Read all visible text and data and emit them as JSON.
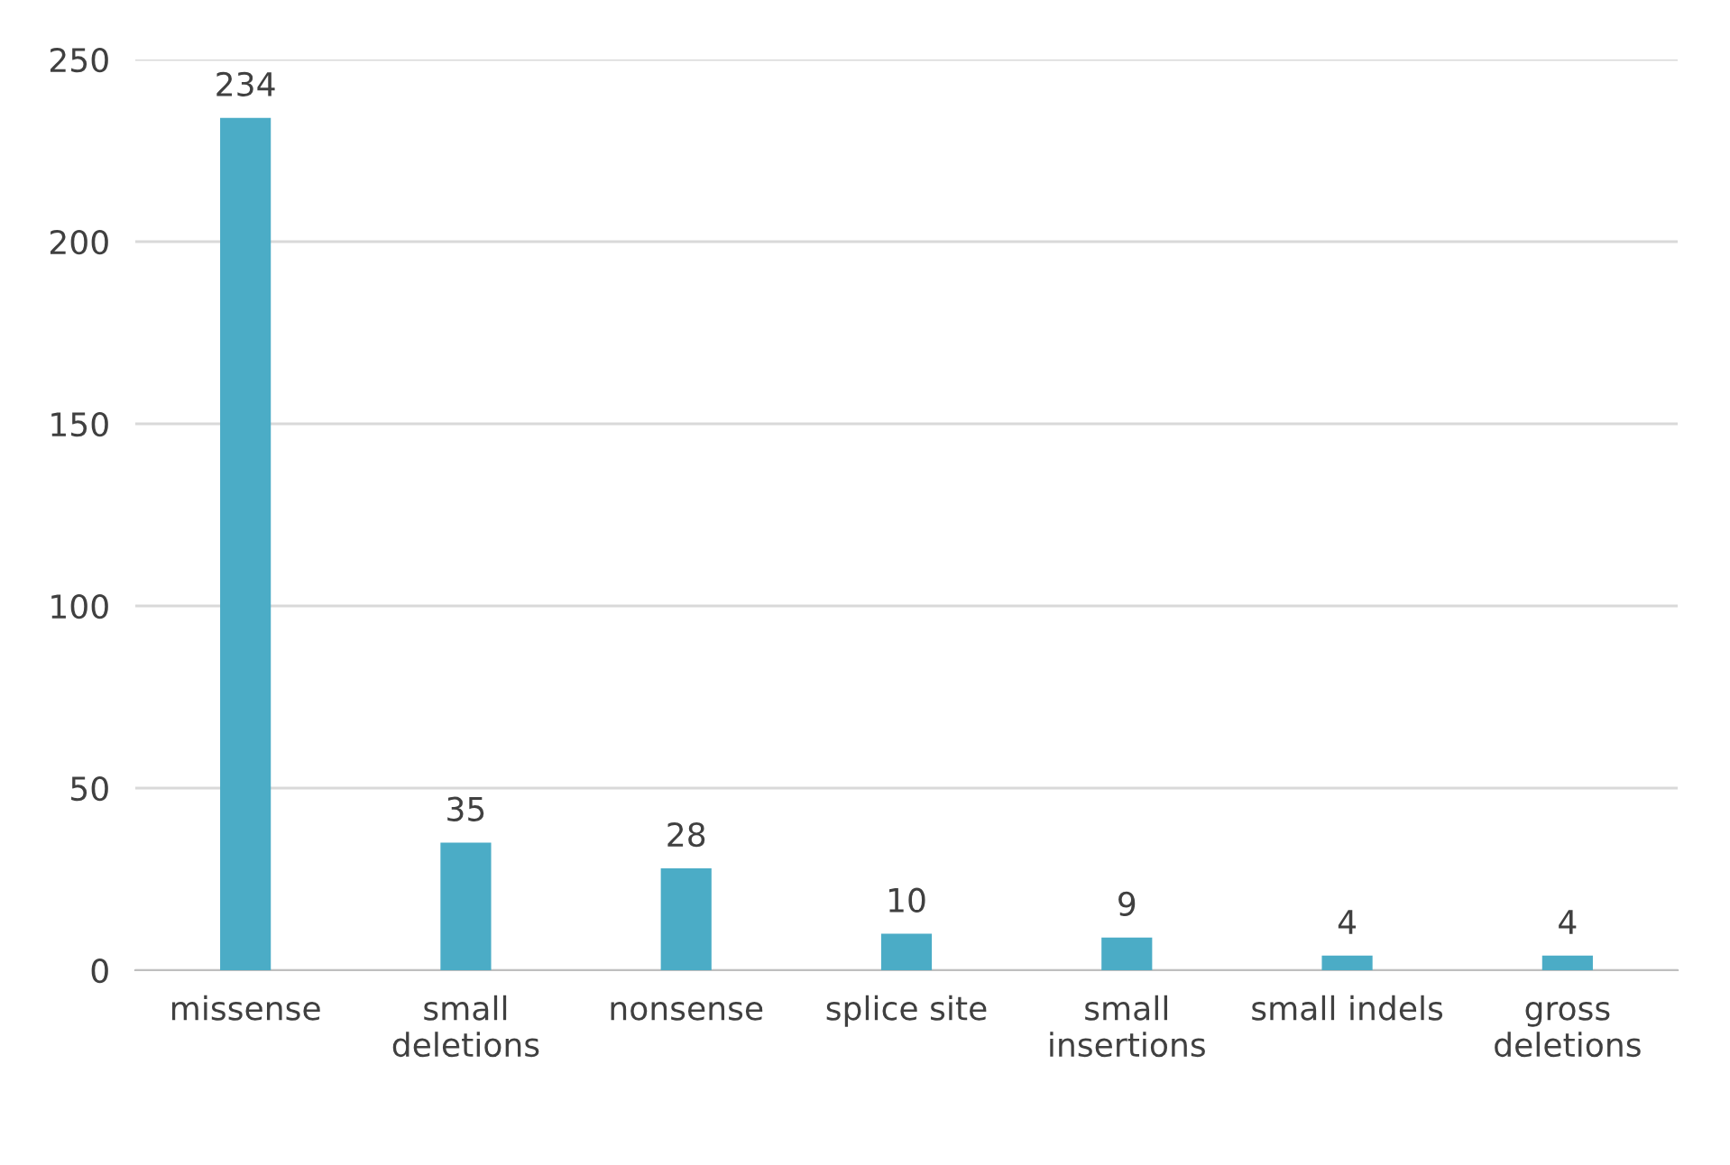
{
  "chart_data": {
    "type": "bar",
    "categories": [
      "missense",
      "small\ndeletions",
      "nonsense",
      "splice site",
      "small\ninsertions",
      "small indels",
      "gross\ndeletions"
    ],
    "values": [
      234,
      35,
      28,
      10,
      9,
      4,
      4
    ],
    "color": "#4bacc6",
    "ylim": [
      0,
      250
    ],
    "yticks": [
      0,
      50,
      100,
      150,
      200,
      250
    ],
    "grid": "y",
    "data_labels": true
  }
}
